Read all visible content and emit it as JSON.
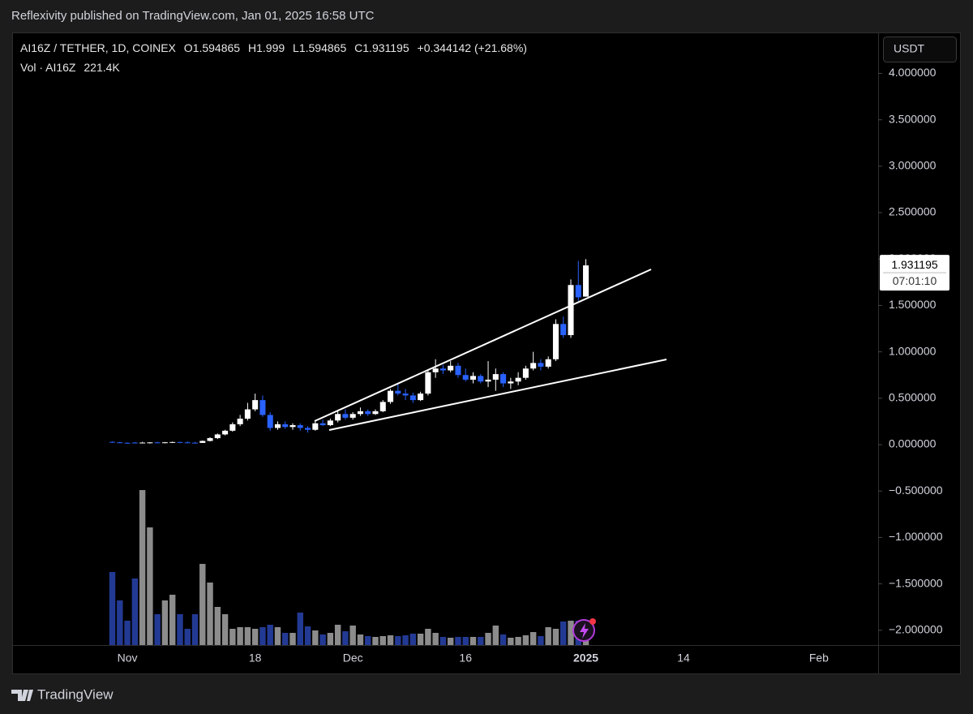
{
  "header": {
    "published": "Reflexivity published on TradingView.com, Jan 01, 2025 16:58 UTC",
    "currency": "USDT",
    "brand": "TradingView"
  },
  "chart_data": {
    "type": "candlestick",
    "symbol": "AI16Z / TETHER, 1D, COINEX",
    "ohlc_labels": [
      "O",
      "H",
      "L",
      "C"
    ],
    "change": "+0.344142 (+21.68%)",
    "volume_title": "Vol · AI16Z",
    "volume_label": "221.4K",
    "countdown": "07:01:10",
    "up_color": "#ffffff",
    "down_color": "#2962ff",
    "volume_up_color": "#8c8c8c",
    "volume_down_color": "#233a94",
    "grid": false,
    "categories": [
      null,
      null,
      "Nov",
      null,
      null,
      null,
      null,
      null,
      null,
      null,
      null,
      null,
      null,
      null,
      null,
      null,
      null,
      null,
      null,
      "18",
      null,
      null,
      null,
      null,
      null,
      null,
      null,
      null,
      null,
      null,
      null,
      null,
      "Dec",
      null,
      null,
      null,
      null,
      null,
      null,
      null,
      null,
      null,
      null,
      null,
      null,
      null,
      null,
      "16",
      null,
      null,
      null,
      null,
      null,
      null,
      null,
      null,
      null,
      null,
      null,
      null,
      null,
      null,
      null,
      "2025",
      null,
      null,
      null,
      null,
      null,
      null,
      null,
      null,
      null,
      null,
      null,
      null,
      "14",
      null,
      null,
      null,
      null,
      null,
      null,
      null,
      null,
      null,
      null,
      null,
      null,
      null,
      null,
      null,
      null,
      null,
      "Feb",
      null,
      null,
      null,
      null,
      null,
      null,
      null
    ],
    "open": [
      0.03,
      0.025,
      0.02,
      0.022,
      0.018,
      0.022,
      0.024,
      0.02,
      0.025,
      0.028,
      0.024,
      0.021,
      0.019,
      0.04,
      0.07,
      0.11,
      0.15,
      0.22,
      0.28,
      0.38,
      0.48,
      0.32,
      0.18,
      0.22,
      0.19,
      0.21,
      0.18,
      0.16,
      0.23,
      0.21,
      0.26,
      0.33,
      0.29,
      0.33,
      0.36,
      0.33,
      0.36,
      0.46,
      0.58,
      0.55,
      0.53,
      0.48,
      0.55,
      0.78,
      0.82,
      0.8,
      0.85,
      0.75,
      0.7,
      0.74,
      0.68,
      0.7,
      0.76,
      0.66,
      0.68,
      0.72,
      0.82,
      0.88,
      0.84,
      0.92,
      1.3,
      1.18,
      1.72,
      1.594865,
      null,
      null,
      null,
      null,
      null,
      null,
      null,
      null,
      null,
      null,
      null,
      null,
      null,
      null,
      null,
      null,
      null,
      null,
      null,
      null,
      null,
      null,
      null,
      null,
      null,
      null,
      null,
      null,
      null,
      null,
      null,
      null,
      null,
      null,
      null,
      null,
      null,
      null
    ],
    "high": [
      0.035,
      0.03,
      0.025,
      0.028,
      0.03,
      0.026,
      0.03,
      0.028,
      0.032,
      0.03,
      0.035,
      0.03,
      0.045,
      0.08,
      0.12,
      0.16,
      0.24,
      0.32,
      0.45,
      0.55,
      0.53,
      0.35,
      0.25,
      0.25,
      0.23,
      0.23,
      0.2,
      0.25,
      0.27,
      0.28,
      0.36,
      0.38,
      0.35,
      0.4,
      0.38,
      0.38,
      0.48,
      0.6,
      0.66,
      0.6,
      0.56,
      0.57,
      0.8,
      0.92,
      0.86,
      0.9,
      0.88,
      0.82,
      0.78,
      0.76,
      0.9,
      0.82,
      0.78,
      0.72,
      0.78,
      0.85,
      1.0,
      0.92,
      0.95,
      1.35,
      1.38,
      1.78,
      1.98,
      1.999,
      null,
      null,
      null,
      null,
      null,
      null,
      null,
      null,
      null,
      null,
      null,
      null,
      null,
      null,
      null,
      null,
      null,
      null,
      null,
      null,
      null,
      null,
      null,
      null,
      null,
      null,
      null,
      null,
      null,
      null,
      null,
      null,
      null,
      null,
      null,
      null,
      null,
      null
    ],
    "low": [
      0.02,
      0.015,
      0.015,
      0.012,
      0.015,
      0.012,
      0.015,
      0.014,
      0.018,
      0.015,
      0.02,
      0.018,
      0.018,
      0.035,
      0.06,
      0.1,
      0.14,
      0.2,
      0.26,
      0.36,
      0.3,
      0.15,
      0.16,
      0.17,
      0.16,
      0.15,
      0.13,
      0.15,
      0.2,
      0.2,
      0.24,
      0.27,
      0.27,
      0.31,
      0.31,
      0.32,
      0.35,
      0.44,
      0.53,
      0.48,
      0.45,
      0.47,
      0.53,
      0.72,
      0.76,
      0.78,
      0.72,
      0.68,
      0.66,
      0.66,
      0.62,
      0.58,
      0.62,
      0.6,
      0.64,
      0.7,
      0.8,
      0.8,
      0.82,
      0.9,
      1.15,
      1.15,
      1.55,
      1.594865,
      null,
      null,
      null,
      null,
      null,
      null,
      null,
      null,
      null,
      null,
      null,
      null,
      null,
      null,
      null,
      null,
      null,
      null,
      null,
      null,
      null,
      null,
      null,
      null,
      null,
      null,
      null,
      null,
      null,
      null,
      null,
      null,
      null,
      null,
      null,
      null,
      null,
      null
    ],
    "close": [
      0.025,
      0.02,
      0.018,
      0.018,
      0.022,
      0.024,
      0.02,
      0.025,
      0.028,
      0.024,
      0.021,
      0.019,
      0.04,
      0.07,
      0.11,
      0.15,
      0.22,
      0.28,
      0.38,
      0.48,
      0.32,
      0.18,
      0.22,
      0.19,
      0.21,
      0.18,
      0.16,
      0.23,
      0.21,
      0.26,
      0.33,
      0.29,
      0.33,
      0.36,
      0.33,
      0.36,
      0.46,
      0.58,
      0.55,
      0.53,
      0.48,
      0.55,
      0.78,
      0.82,
      0.8,
      0.85,
      0.75,
      0.7,
      0.74,
      0.68,
      0.7,
      0.76,
      0.66,
      0.68,
      0.72,
      0.82,
      0.88,
      0.84,
      0.92,
      1.3,
      1.18,
      1.72,
      1.587053,
      1.931195,
      null,
      null,
      null,
      null,
      null,
      null,
      null,
      null,
      null,
      null,
      null,
      null,
      null,
      null,
      null,
      null,
      null,
      null,
      null,
      null,
      null,
      null,
      null,
      null,
      null,
      null,
      null,
      null,
      null,
      null,
      null,
      null,
      null,
      null,
      null,
      null,
      null,
      null
    ],
    "volume": [
      810000,
      495000,
      270000,
      738000,
      1719000,
      1305000,
      342000,
      495000,
      558000,
      342000,
      180000,
      342000,
      900000,
      693000,
      423000,
      342000,
      180000,
      198000,
      198000,
      180000,
      198000,
      225000,
      198000,
      135000,
      135000,
      360000,
      207000,
      162000,
      117000,
      135000,
      225000,
      153000,
      216000,
      117000,
      99000,
      90000,
      99000,
      108000,
      99000,
      108000,
      126000,
      126000,
      180000,
      135000,
      90000,
      81000,
      90000,
      90000,
      90000,
      90000,
      135000,
      216000,
      117000,
      81000,
      90000,
      108000,
      144000,
      99000,
      198000,
      180000,
      261000,
      270000,
      270000,
      221400,
      null,
      null,
      null,
      null,
      null,
      null,
      null,
      null,
      null,
      null,
      null,
      null,
      null,
      null,
      null,
      null,
      null,
      null,
      null,
      null,
      null,
      null,
      null,
      null,
      null,
      null,
      null,
      null,
      null,
      null,
      null,
      null,
      null,
      null,
      null,
      null,
      null,
      null
    ],
    "ylim": [
      -2.159,
      4.441
    ],
    "yticks": [
      {
        "value": 4,
        "label": "4.000000"
      },
      {
        "value": 3.5,
        "label": "3.500000"
      },
      {
        "value": 3,
        "label": "3.000000"
      },
      {
        "value": 2.5,
        "label": "2.500000"
      },
      {
        "value": 2,
        "label": "2.000000"
      },
      {
        "value": 1.5,
        "label": "1.500000"
      },
      {
        "value": 1,
        "label": "1.000000"
      },
      {
        "value": 0.5,
        "label": "0.500000"
      },
      {
        "value": 0,
        "label": "0.000000"
      },
      {
        "value": -0.5,
        "label": "−0.500000"
      },
      {
        "value": -1,
        "label": "−1.000000"
      },
      {
        "value": -1.5,
        "label": "−1.500000"
      },
      {
        "value": -2,
        "label": "−2.000000"
      }
    ]
  }
}
